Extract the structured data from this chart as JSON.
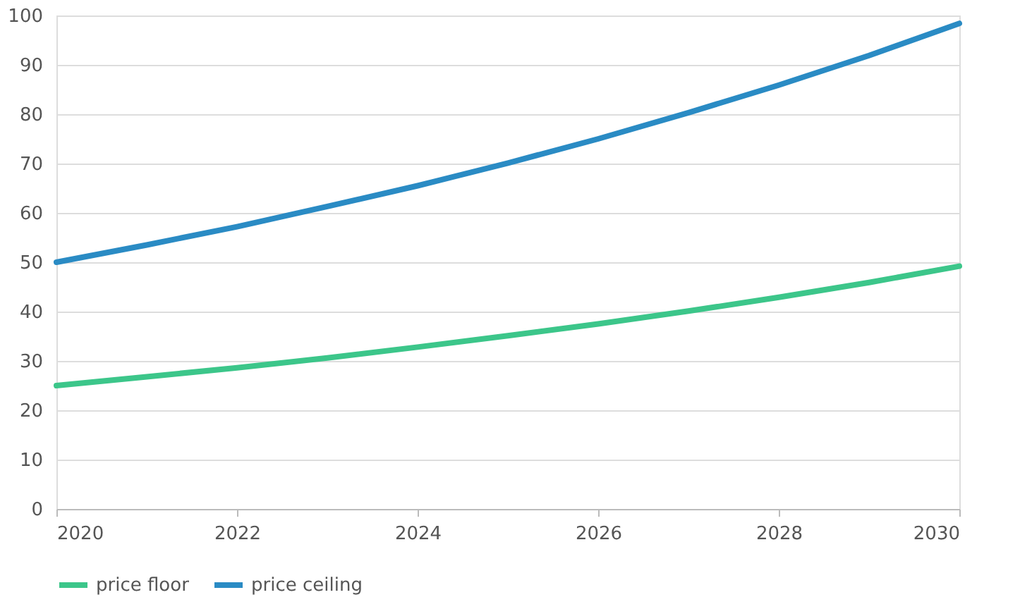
{
  "chart_data": {
    "type": "line",
    "x": [
      2020,
      2021,
      2022,
      2023,
      2024,
      2025,
      2026,
      2027,
      2028,
      2029,
      2030
    ],
    "series": [
      {
        "name": "price floor",
        "color": "#3cc68a",
        "values": [
          25,
          26.8,
          28.6,
          30.6,
          32.8,
          35.1,
          37.5,
          40.1,
          42.9,
          45.9,
          49.2
        ]
      },
      {
        "name": "price ceiling",
        "color": "#2a8bc4",
        "values": [
          50,
          53.5,
          57.2,
          61.3,
          65.5,
          70.1,
          75,
          80.3,
          85.9,
          91.9,
          98.4
        ]
      }
    ],
    "xlim": [
      2020,
      2030
    ],
    "xticks": [
      2020,
      2022,
      2024,
      2026,
      2028,
      2030
    ],
    "ylim": [
      0,
      100
    ],
    "yticks": [
      0,
      10,
      20,
      30,
      40,
      50,
      60,
      70,
      80,
      90,
      100
    ],
    "grid": "y",
    "legend": "bottom",
    "marker": "none",
    "line_style": "solid"
  }
}
